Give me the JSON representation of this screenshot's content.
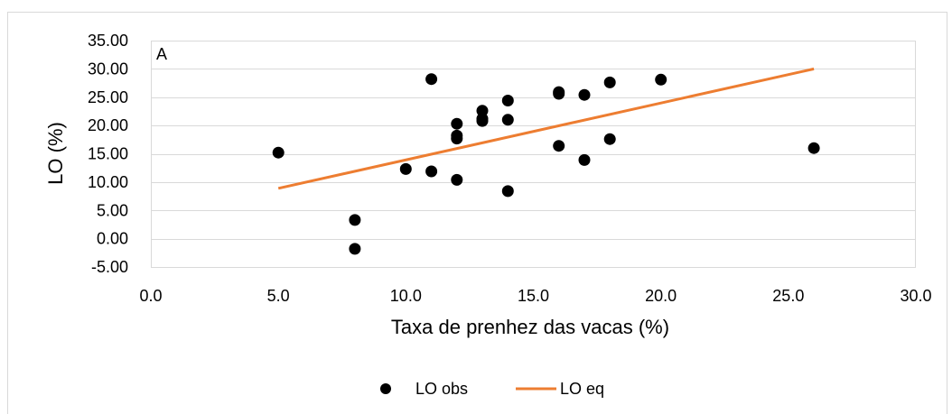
{
  "chart_data": {
    "type": "scatter",
    "panel_label": "A",
    "xlabel": "Taxa de prenhez das vacas (%)",
    "ylabel": "LO (%)",
    "xlim": [
      0,
      30
    ],
    "ylim": [
      -5,
      35
    ],
    "x_ticks": [
      0,
      5,
      10,
      15,
      20,
      25,
      30
    ],
    "y_ticks": [
      -5,
      0,
      5,
      10,
      15,
      20,
      25,
      30,
      35
    ],
    "x_tick_labels": [
      "0.0",
      "5.0",
      "10.0",
      "15.0",
      "20.0",
      "25.0",
      "30.0"
    ],
    "y_tick_labels": [
      "-5.00",
      "0.00",
      "5.00",
      "10.00",
      "15.00",
      "20.00",
      "25.00",
      "30.00",
      "35.00"
    ],
    "grid": "horizontal",
    "legend_position": "bottom",
    "colors": {
      "points": "#000000",
      "line": "#ED7D31",
      "grid": "#D9D9D9",
      "frame": "#D9D9D9"
    },
    "series": [
      {
        "name": "LO obs",
        "kind": "scatter",
        "x": [
          5,
          8,
          8,
          10,
          11,
          11,
          12,
          12,
          12,
          12,
          13,
          13,
          13,
          14,
          14,
          14,
          16,
          16,
          16,
          17,
          17,
          18,
          18,
          20,
          26
        ],
        "y": [
          15.2,
          3.3,
          -1.8,
          12.3,
          28.2,
          11.9,
          10.4,
          20.3,
          18.2,
          17.7,
          22.6,
          21.2,
          20.8,
          24.4,
          21.0,
          8.4,
          25.9,
          25.6,
          16.4,
          25.4,
          13.9,
          27.6,
          17.6,
          28.1,
          16.0
        ]
      },
      {
        "name": "LO eq",
        "kind": "line",
        "x": [
          5,
          26
        ],
        "y": [
          8.9,
          30.0
        ]
      }
    ]
  }
}
